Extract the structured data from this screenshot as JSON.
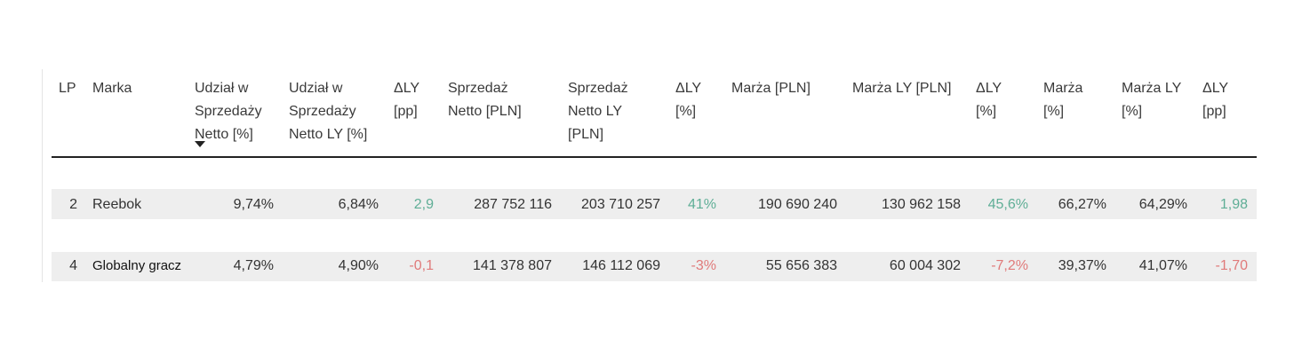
{
  "table": {
    "headers": [
      [
        "LP"
      ],
      [
        "Marka"
      ],
      [
        "Udział w",
        "Sprzedaży",
        "Netto [%]"
      ],
      [
        "Udział w",
        "Sprzedaży",
        "Netto LY [%]"
      ],
      [
        "ΔLY",
        "[pp]"
      ],
      [
        "Sprzedaż",
        "Netto [PLN]"
      ],
      [
        "Sprzedaż",
        "Netto LY",
        "[PLN]"
      ],
      [
        "ΔLY",
        "[%]"
      ],
      [
        "Marża [PLN]"
      ],
      [
        "Marża LY [PLN]"
      ],
      [
        "ΔLY",
        "[%]"
      ],
      [
        "Marża",
        "[%]"
      ],
      [
        "Marża LY",
        "[%]"
      ],
      [
        "ΔLY",
        "[pp]"
      ]
    ],
    "rows": [
      [
        "2",
        "Reebok",
        "9,74%",
        "6,84%",
        "2,9",
        "287 752 116",
        "203 710 257",
        "41%",
        "190 690 240",
        "130 962 158",
        "45,6%",
        "66,27%",
        "64,29%",
        "1,98"
      ],
      [
        "4",
        "Globalny gracz",
        "4,79%",
        "4,90%",
        "-0,1",
        "141 378 807",
        "146 112 069",
        "-3%",
        "55 656 383",
        "60 004 302",
        "-7,2%",
        "39,37%",
        "41,07%",
        "-1,70"
      ]
    ]
  }
}
